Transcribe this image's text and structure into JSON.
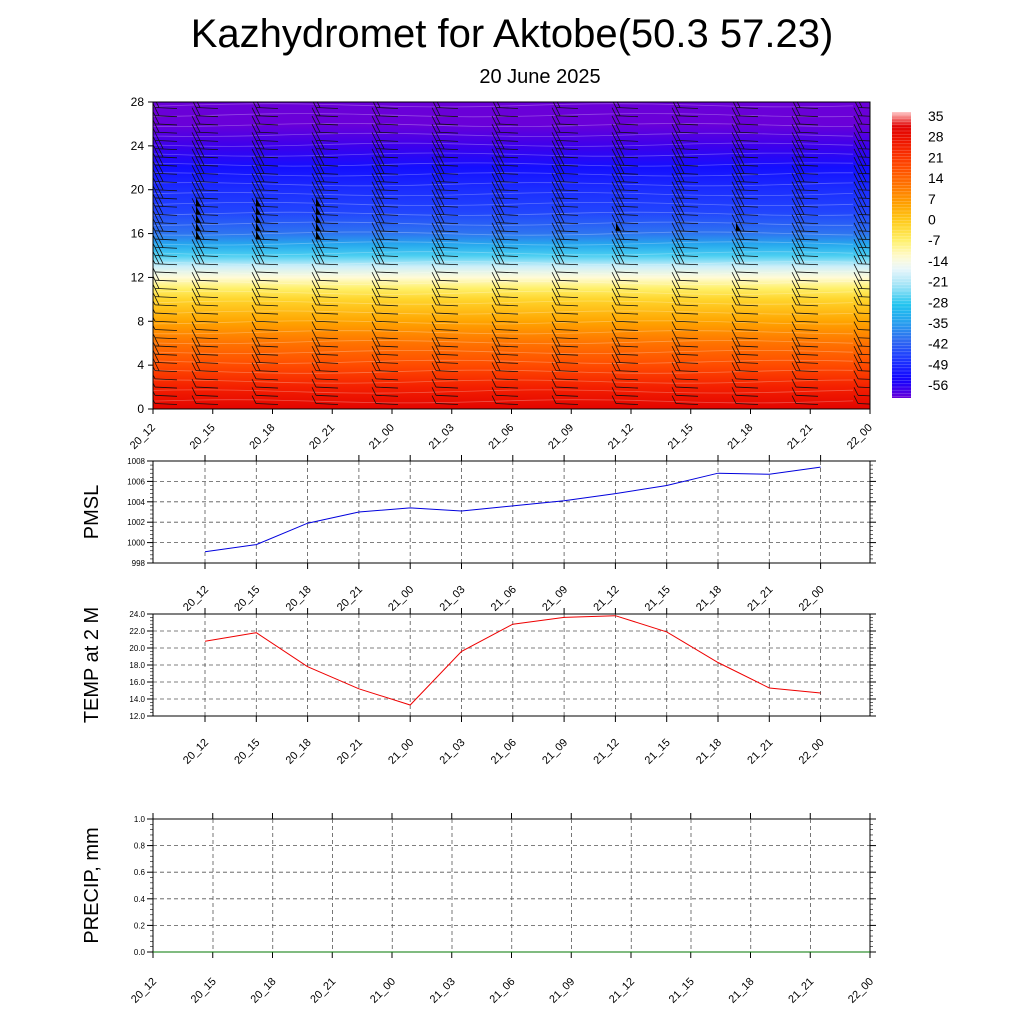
{
  "header": {
    "title": "Kazhydromet for Aktobe(50.3 57.23)",
    "subtitle": "20 June 2025"
  },
  "colors": {
    "pmsl_line": "#0000dd",
    "temp_line": "#ee0000",
    "precip_line": "#007700",
    "grid": "#555555"
  },
  "chart_data": [
    {
      "id": "cross-section",
      "type": "heatmap",
      "title": "",
      "ylabel": "",
      "x": [
        "20_12",
        "20_15",
        "20_18",
        "20_21",
        "21_00",
        "21_03",
        "21_06",
        "21_09",
        "21_12",
        "21_15",
        "21_18",
        "21_21",
        "22_00"
      ],
      "yticks": [
        0,
        4,
        8,
        12,
        16,
        20,
        24,
        28
      ],
      "ylim": [
        0,
        28
      ],
      "colorbar": {
        "labels": [
          "35",
          "28",
          "21",
          "14",
          "7",
          "0",
          "-7",
          "-14",
          "-21",
          "-28",
          "-35",
          "-42",
          "-49",
          "-56"
        ],
        "range": [
          -60,
          38
        ]
      },
      "temperature_profile": {
        "heights": [
          0,
          2,
          4,
          6,
          8,
          10,
          11,
          12,
          13,
          14,
          15,
          16,
          18,
          20,
          22,
          24,
          26,
          28
        ],
        "values": [
          32,
          26,
          19,
          13,
          6,
          -1,
          -6,
          -12,
          -18,
          -26,
          -33,
          -39,
          -45,
          -48,
          -52,
          -57,
          -60,
          -60
        ]
      },
      "wind_barbs": "shown on heights 0-28 at every time step"
    },
    {
      "id": "pmsl",
      "type": "line",
      "ylabel": "PMSL",
      "x": [
        "20_12",
        "20_15",
        "20_18",
        "20_21",
        "21_00",
        "21_03",
        "21_06",
        "21_09",
        "21_12",
        "21_15",
        "21_18",
        "21_21",
        "22_00"
      ],
      "yticks": [
        "998",
        "1000",
        "1002",
        "1004",
        "1006",
        "1008"
      ],
      "ylim": [
        998,
        1008
      ],
      "series": [
        {
          "values": [
            999.1,
            999.8,
            1001.9,
            1003.0,
            1003.4,
            1003.1,
            1003.6,
            1004.1,
            1004.8,
            1005.6,
            1006.8,
            1006.7,
            1007.4
          ]
        }
      ],
      "grid": true
    },
    {
      "id": "temp2m",
      "type": "line",
      "ylabel": "TEMP at 2 M",
      "x": [
        "20_12",
        "20_15",
        "20_18",
        "20_21",
        "21_00",
        "21_03",
        "21_06",
        "21_09",
        "21_12",
        "21_15",
        "21_18",
        "21_21",
        "22_00"
      ],
      "yticks": [
        "12.0",
        "14.0",
        "16.0",
        "18.0",
        "20.0",
        "22.0",
        "24.0"
      ],
      "ylim": [
        12,
        24
      ],
      "series": [
        {
          "values": [
            20.8,
            21.8,
            17.8,
            15.2,
            13.3,
            19.6,
            22.8,
            23.6,
            23.8,
            21.9,
            18.3,
            15.3,
            14.7
          ]
        }
      ],
      "grid": true
    },
    {
      "id": "precip",
      "type": "line",
      "ylabel": "PRECIP, mm",
      "x": [
        "20_12",
        "20_15",
        "20_18",
        "20_21",
        "21_00",
        "21_03",
        "21_06",
        "21_09",
        "21_12",
        "21_15",
        "21_18",
        "21_21",
        "22_00"
      ],
      "yticks": [
        "0.0",
        "0.2",
        "0.4",
        "0.6",
        "0.8",
        "1.0"
      ],
      "ylim": [
        0,
        1
      ],
      "series": [
        {
          "values": [
            0,
            0,
            0,
            0,
            0,
            0,
            0,
            0,
            0,
            0,
            0,
            0,
            0
          ]
        }
      ],
      "grid": true
    }
  ]
}
